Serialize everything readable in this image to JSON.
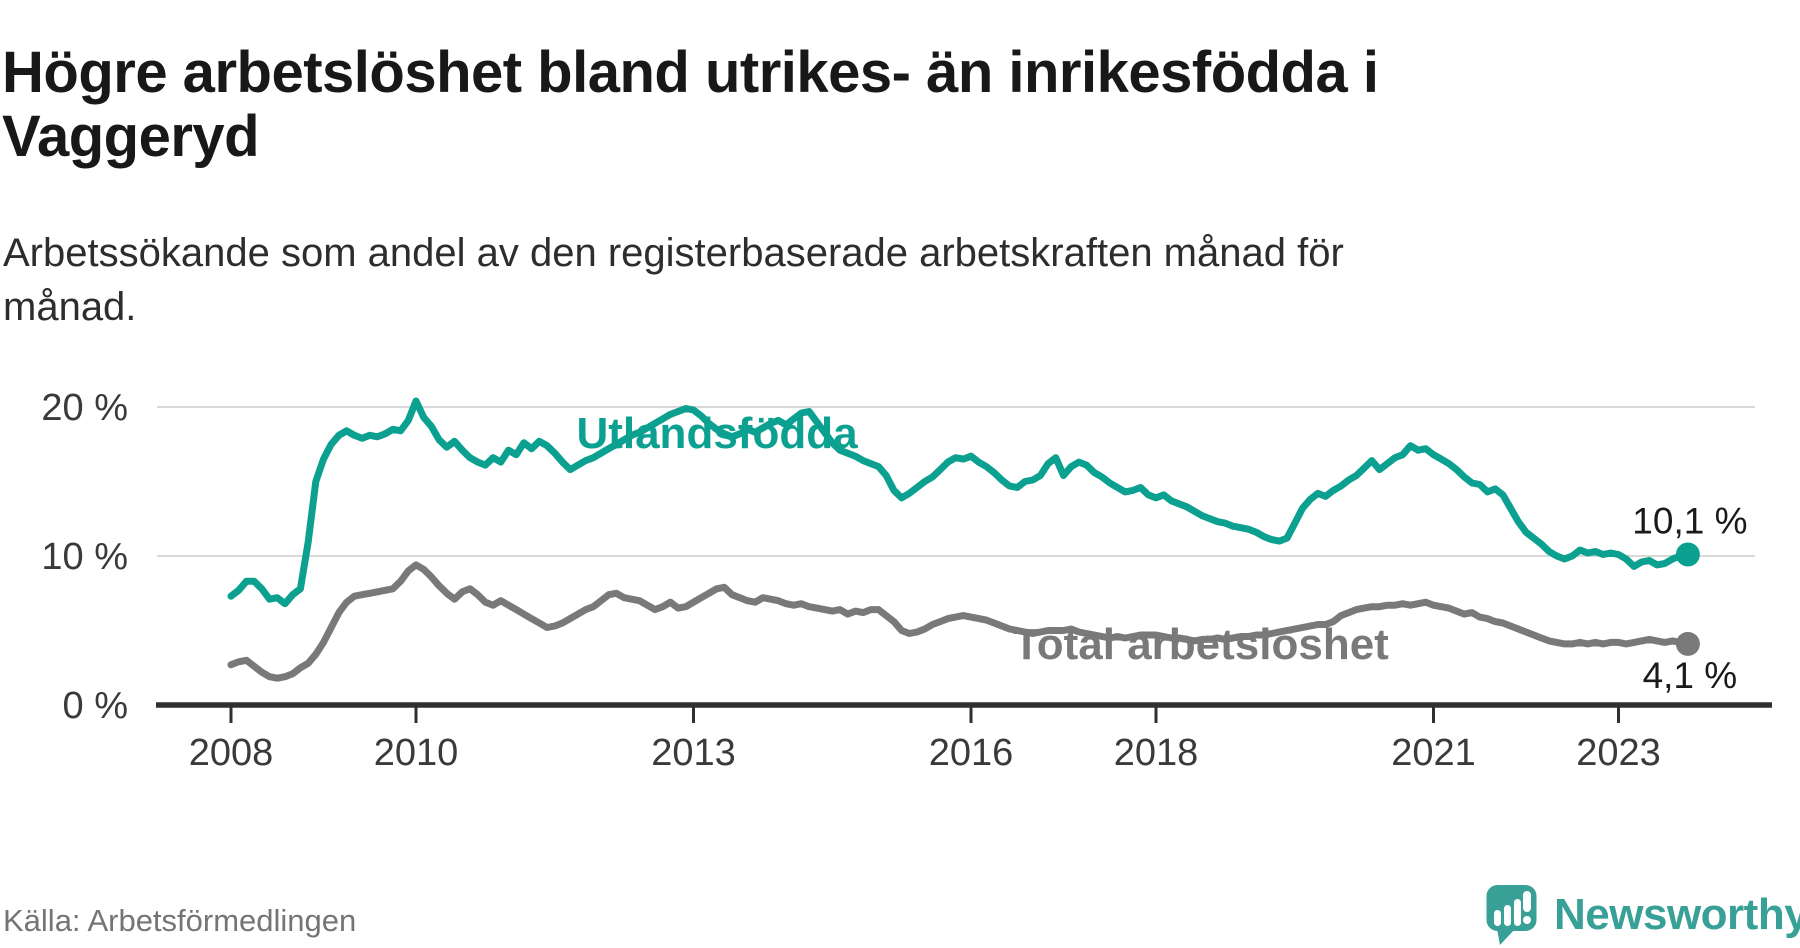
{
  "header": {
    "title": "Högre arbetslöshet bland utrikes- än inrikesfödda i Vaggeryd",
    "subtitle": "Arbetssökande som andel av den registerbaserade arbetskraften månad för månad."
  },
  "footer": {
    "source": "Källa: Arbetsförmedlingen",
    "brand": "Newsworthy"
  },
  "colors": {
    "accent_teal": "#0ba08f",
    "line_gray": "#797979",
    "logo_teal": "#38a096",
    "axis": "#303030",
    "gridline": "#d9d9d9",
    "text_dark": "#181818"
  },
  "chart_data": {
    "type": "line",
    "title": "Högre arbetslöshet bland utrikes- än inrikesfödda i Vaggeryd",
    "xlabel": "",
    "ylabel": "",
    "grid": "horizontal",
    "legend_position": "inline-labels",
    "x_start_year": 2008,
    "points_per_year": 12,
    "x_range": [
      2008,
      2023.75
    ],
    "ylim": [
      0,
      21.5
    ],
    "x_ticks": [
      {
        "value": 2008,
        "label": "2008"
      },
      {
        "value": 2010,
        "label": "2010"
      },
      {
        "value": 2013,
        "label": "2013"
      },
      {
        "value": 2016,
        "label": "2016"
      },
      {
        "value": 2018,
        "label": "2018"
      },
      {
        "value": 2021,
        "label": "2021"
      },
      {
        "value": 2023,
        "label": "2023"
      }
    ],
    "y_ticks": [
      {
        "value": 0,
        "label": "0 %"
      },
      {
        "value": 10,
        "label": "10 %"
      },
      {
        "value": 20,
        "label": "20 %"
      }
    ],
    "series": [
      {
        "name": "Utlandsfödda",
        "color": "#0ba08f",
        "end_label": "10,1 %",
        "end_value": 10.1,
        "values": [
          7.3,
          7.7,
          8.3,
          8.3,
          7.8,
          7.1,
          7.2,
          6.8,
          7.4,
          7.8,
          10.9,
          15.0,
          16.5,
          17.5,
          18.1,
          18.4,
          18.1,
          17.9,
          18.1,
          18.0,
          18.2,
          18.5,
          18.4,
          19.1,
          20.4,
          19.3,
          18.7,
          17.8,
          17.3,
          17.7,
          17.1,
          16.6,
          16.3,
          16.1,
          16.6,
          16.3,
          17.1,
          16.8,
          17.6,
          17.2,
          17.7,
          17.4,
          16.9,
          16.3,
          15.8,
          16.1,
          16.4,
          16.6,
          16.9,
          17.2,
          17.5,
          17.8,
          18.1,
          18.3,
          18.6,
          18.9,
          19.2,
          19.5,
          19.7,
          19.9,
          19.8,
          19.4,
          18.9,
          18.5,
          18.2,
          18.0,
          18.2,
          18.5,
          18.3,
          18.6,
          18.9,
          19.1,
          18.8,
          19.2,
          19.6,
          19.7,
          19.0,
          18.3,
          17.6,
          17.1,
          16.9,
          16.7,
          16.4,
          16.2,
          16.0,
          15.4,
          14.4,
          13.9,
          14.2,
          14.6,
          15.0,
          15.3,
          15.8,
          16.3,
          16.6,
          16.5,
          16.7,
          16.3,
          16.0,
          15.6,
          15.1,
          14.7,
          14.6,
          15.0,
          15.1,
          15.4,
          16.2,
          16.6,
          15.4,
          16.0,
          16.3,
          16.1,
          15.6,
          15.3,
          14.9,
          14.6,
          14.3,
          14.4,
          14.6,
          14.1,
          13.9,
          14.1,
          13.7,
          13.5,
          13.3,
          13.0,
          12.7,
          12.5,
          12.3,
          12.2,
          12.0,
          11.9,
          11.8,
          11.6,
          11.3,
          11.1,
          11.0,
          11.2,
          12.2,
          13.2,
          13.8,
          14.2,
          14.0,
          14.4,
          14.7,
          15.1,
          15.4,
          15.9,
          16.4,
          15.8,
          16.2,
          16.6,
          16.8,
          17.4,
          17.1,
          17.2,
          16.8,
          16.5,
          16.2,
          15.8,
          15.3,
          14.9,
          14.8,
          14.3,
          14.5,
          14.1,
          13.2,
          12.3,
          11.6,
          11.2,
          10.8,
          10.3,
          10.0,
          9.8,
          10.0,
          10.4,
          10.2,
          10.3,
          10.1,
          10.2,
          10.1,
          9.8,
          9.3,
          9.6,
          9.7,
          9.4,
          9.5,
          9.8,
          10.0,
          10.1
        ]
      },
      {
        "name": "Total arbetslöshet",
        "color": "#797979",
        "end_label": "4,1 %",
        "end_value": 4.1,
        "values": [
          2.7,
          2.9,
          3.0,
          2.6,
          2.2,
          1.9,
          1.8,
          1.9,
          2.1,
          2.5,
          2.8,
          3.4,
          4.2,
          5.2,
          6.2,
          6.9,
          7.3,
          7.4,
          7.5,
          7.6,
          7.7,
          7.8,
          8.3,
          9.0,
          9.4,
          9.1,
          8.6,
          8.0,
          7.5,
          7.1,
          7.6,
          7.8,
          7.4,
          6.9,
          6.7,
          7.0,
          6.7,
          6.4,
          6.1,
          5.8,
          5.5,
          5.2,
          5.3,
          5.5,
          5.8,
          6.1,
          6.4,
          6.6,
          7.0,
          7.4,
          7.5,
          7.2,
          7.1,
          7.0,
          6.7,
          6.4,
          6.6,
          6.9,
          6.5,
          6.6,
          6.9,
          7.2,
          7.5,
          7.8,
          7.9,
          7.4,
          7.2,
          7.0,
          6.9,
          7.2,
          7.1,
          7.0,
          6.8,
          6.7,
          6.8,
          6.6,
          6.5,
          6.4,
          6.3,
          6.4,
          6.1,
          6.3,
          6.2,
          6.4,
          6.4,
          6.0,
          5.6,
          5.0,
          4.8,
          4.9,
          5.1,
          5.4,
          5.6,
          5.8,
          5.9,
          6.0,
          5.9,
          5.8,
          5.7,
          5.5,
          5.3,
          5.1,
          5.0,
          4.9,
          4.8,
          4.9,
          5.0,
          5.0,
          5.0,
          5.1,
          4.9,
          4.8,
          4.7,
          4.6,
          4.5,
          4.6,
          4.5,
          4.6,
          4.7,
          4.7,
          4.7,
          4.6,
          4.5,
          4.5,
          4.4,
          4.3,
          4.4,
          4.4,
          4.5,
          4.4,
          4.5,
          4.6,
          4.6,
          4.7,
          4.7,
          4.8,
          4.9,
          5.0,
          5.1,
          5.2,
          5.3,
          5.4,
          5.4,
          5.6,
          6.0,
          6.2,
          6.4,
          6.5,
          6.6,
          6.6,
          6.7,
          6.7,
          6.8,
          6.7,
          6.8,
          6.9,
          6.7,
          6.6,
          6.5,
          6.3,
          6.1,
          6.2,
          5.9,
          5.8,
          5.6,
          5.5,
          5.3,
          5.1,
          4.9,
          4.7,
          4.5,
          4.3,
          4.2,
          4.1,
          4.1,
          4.2,
          4.1,
          4.2,
          4.1,
          4.2,
          4.2,
          4.1,
          4.2,
          4.3,
          4.4,
          4.3,
          4.2,
          4.3,
          4.2,
          4.1
        ]
      }
    ]
  }
}
